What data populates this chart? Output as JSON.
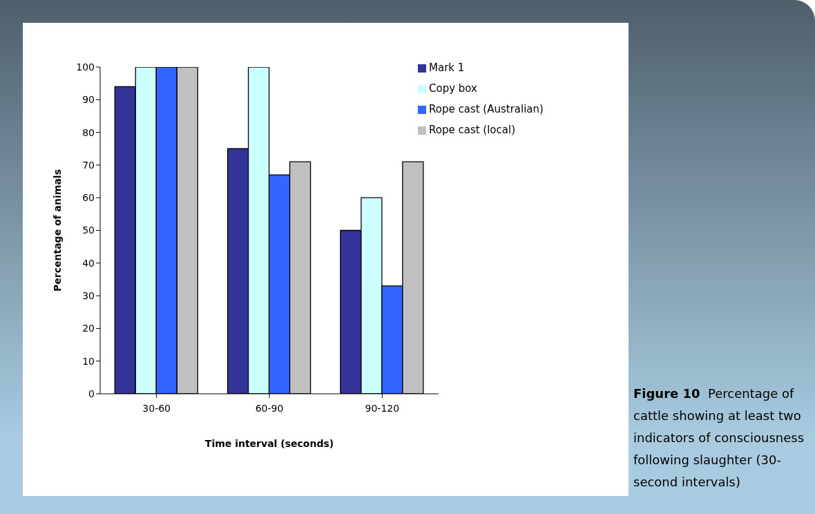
{
  "chart_data": {
    "type": "bar",
    "xlabel": "Time interval (seconds)",
    "ylabel": "Percentage of animals",
    "categories": [
      "30-60",
      "60-90",
      "90-120"
    ],
    "series": [
      {
        "name": "Mark 1",
        "color": "#333399",
        "values": [
          94,
          75,
          50
        ]
      },
      {
        "name": "Copy box",
        "color": "#ccffff",
        "values": [
          100,
          100,
          60
        ]
      },
      {
        "name": "Rope cast (Australian)",
        "color": "#3366ff",
        "values": [
          100,
          67,
          33
        ]
      },
      {
        "name": "Rope cast (local)",
        "color": "#c0c0c0",
        "values": [
          100,
          71,
          71
        ]
      }
    ],
    "ylim": [
      0,
      100
    ],
    "yticks": [
      0,
      10,
      20,
      30,
      40,
      50,
      60,
      70,
      80,
      90,
      100
    ],
    "grid": false,
    "legend": "top right",
    "annotations": [
      "Figure 10  Percentage of cattle showing at least two indicators of consciousness following slaughter (30-second intervals)"
    ]
  }
}
